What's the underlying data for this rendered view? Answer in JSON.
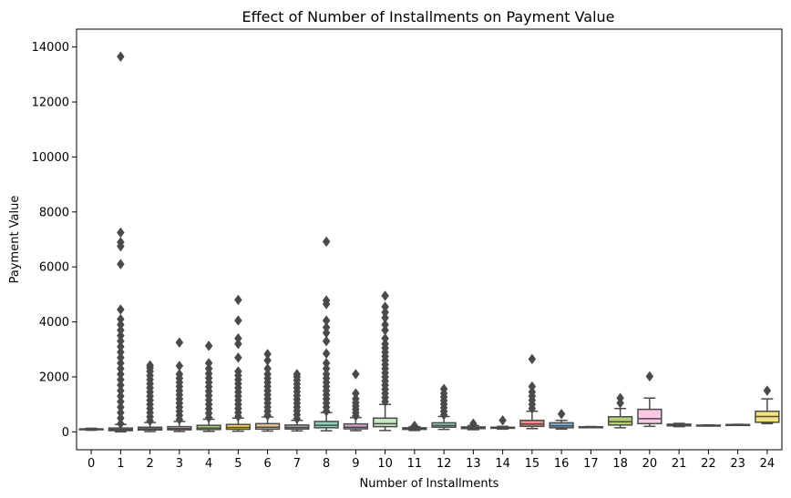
{
  "chart_data": {
    "type": "box",
    "title": "Effect of Number of Installments on Payment Value",
    "xlabel": "Number of Installments",
    "ylabel": "Payment Value",
    "ylim": [
      -650,
      14650
    ],
    "yticks": [
      0,
      2000,
      4000,
      6000,
      8000,
      10000,
      12000,
      14000
    ],
    "grid": false,
    "legend": "none",
    "box_edge_color": "#4a4a4a",
    "categories": [
      "0",
      "1",
      "2",
      "3",
      "4",
      "5",
      "6",
      "7",
      "8",
      "9",
      "10",
      "11",
      "12",
      "13",
      "14",
      "15",
      "16",
      "17",
      "18",
      "20",
      "21",
      "22",
      "23",
      "24"
    ],
    "series": [
      {
        "category": "0",
        "color": "#8fd0bf",
        "min": 60,
        "q1": 80,
        "median": 95,
        "q3": 110,
        "max": 130,
        "outliers": []
      },
      {
        "category": "1",
        "color": "#f4a582",
        "min": 0,
        "q1": 45,
        "median": 85,
        "q3": 140,
        "max": 270,
        "outliers": [
          300,
          500,
          700,
          900,
          1100,
          1300,
          1500,
          1700,
          1900,
          2100,
          2300,
          2500,
          2700,
          2900,
          3100,
          3300,
          3500,
          3700,
          3900,
          4100,
          4450,
          6100,
          6750,
          6900,
          7250,
          13650
        ]
      },
      {
        "category": "2",
        "color": "#9fb3d6",
        "min": 10,
        "q1": 70,
        "median": 110,
        "q3": 170,
        "max": 340,
        "outliers": [
          400,
          550,
          700,
          850,
          1000,
          1150,
          1300,
          1450,
          1600,
          1750,
          1900,
          2050,
          2200,
          2330,
          2420
        ]
      },
      {
        "category": "3",
        "color": "#e3a8d6",
        "min": 15,
        "q1": 75,
        "median": 120,
        "q3": 190,
        "max": 380,
        "outliers": [
          450,
          600,
          750,
          900,
          1050,
          1200,
          1350,
          1500,
          1650,
          1800,
          1950,
          2100,
          2400,
          3250
        ]
      },
      {
        "category": "4",
        "color": "#a6d96a",
        "min": 20,
        "q1": 85,
        "median": 140,
        "q3": 240,
        "max": 460,
        "outliers": [
          520,
          680,
          840,
          1000,
          1160,
          1320,
          1480,
          1640,
          1800,
          1960,
          2120,
          2300,
          2500,
          3130
        ]
      },
      {
        "category": "5",
        "color": "#ffd92f",
        "min": 25,
        "q1": 95,
        "median": 160,
        "q3": 270,
        "max": 500,
        "outliers": [
          560,
          700,
          850,
          1000,
          1150,
          1300,
          1450,
          1600,
          1750,
          1900,
          2050,
          2200,
          2700,
          3200,
          3400,
          4050,
          4800
        ]
      },
      {
        "category": "6",
        "color": "#e5c494",
        "min": 30,
        "q1": 100,
        "median": 170,
        "q3": 300,
        "max": 540,
        "outliers": [
          600,
          750,
          900,
          1050,
          1200,
          1350,
          1500,
          1650,
          1800,
          1950,
          2100,
          2300,
          2600,
          2830
        ]
      },
      {
        "category": "7",
        "color": "#b3b3b3",
        "min": 35,
        "q1": 105,
        "median": 160,
        "q3": 250,
        "max": 420,
        "outliers": [
          480,
          620,
          760,
          900,
          1040,
          1180,
          1320,
          1460,
          1600,
          1740,
          1880,
          2000,
          2100
        ]
      },
      {
        "category": "8",
        "color": "#8fd0bf",
        "min": 40,
        "q1": 150,
        "median": 240,
        "q3": 380,
        "max": 700,
        "outliers": [
          750,
          900,
          1050,
          1200,
          1350,
          1500,
          1650,
          1800,
          1950,
          2100,
          2300,
          2500,
          2850,
          3300,
          3600,
          3800,
          4050,
          4650,
          4780,
          6920
        ]
      },
      {
        "category": "9",
        "color": "#d9a3d1",
        "min": 45,
        "q1": 110,
        "median": 170,
        "q3": 290,
        "max": 520,
        "outliers": [
          580,
          700,
          820,
          940,
          1060,
          1200,
          1400,
          2100
        ]
      },
      {
        "category": "10",
        "color": "#c7e9c0",
        "min": 50,
        "q1": 190,
        "median": 300,
        "q3": 500,
        "max": 1000,
        "outliers": [
          1100,
          1250,
          1400,
          1550,
          1700,
          1850,
          2000,
          2150,
          2300,
          2450,
          2600,
          2750,
          2900,
          3050,
          3200,
          3400,
          3700,
          3900,
          4150,
          4350,
          4550,
          4950
        ]
      },
      {
        "category": "11",
        "color": "#8fd0bf",
        "min": 50,
        "q1": 90,
        "median": 120,
        "q3": 150,
        "max": 190,
        "outliers": [
          220
        ]
      },
      {
        "category": "12",
        "color": "#8fd0bf",
        "min": 90,
        "q1": 170,
        "median": 230,
        "q3": 330,
        "max": 560,
        "outliers": [
          620,
          750,
          880,
          1010,
          1140,
          1270,
          1400,
          1560
        ]
      },
      {
        "category": "13",
        "color": "#9fb3d6",
        "min": 80,
        "q1": 120,
        "median": 150,
        "q3": 180,
        "max": 230,
        "outliers": [
          300
        ]
      },
      {
        "category": "14",
        "color": "#e3a8d6",
        "min": 100,
        "q1": 130,
        "median": 150,
        "q3": 170,
        "max": 200,
        "outliers": [
          420
        ]
      },
      {
        "category": "15",
        "color": "#f08a82",
        "min": 120,
        "q1": 200,
        "median": 280,
        "q3": 420,
        "max": 750,
        "outliers": [
          850,
          1000,
          1150,
          1300,
          1450,
          1650,
          2650
        ]
      },
      {
        "category": "16",
        "color": "#7fb0d6",
        "min": 100,
        "q1": 150,
        "median": 220,
        "q3": 330,
        "max": 420,
        "outliers": [
          650
        ]
      },
      {
        "category": "17",
        "color": "#bdbdbd",
        "min": 160,
        "q1": 175,
        "median": 180,
        "q3": 185,
        "max": 195,
        "outliers": []
      },
      {
        "category": "18",
        "color": "#b5d17a",
        "min": 150,
        "q1": 250,
        "median": 370,
        "q3": 550,
        "max": 850,
        "outliers": [
          1050,
          1230
        ]
      },
      {
        "category": "20",
        "color": "#fcc8e4",
        "min": 200,
        "q1": 300,
        "median": 480,
        "q3": 820,
        "max": 1230,
        "outliers": [
          2020
        ]
      },
      {
        "category": "21",
        "color": "#bdbdbd",
        "min": 190,
        "q1": 220,
        "median": 250,
        "q3": 280,
        "max": 310,
        "outliers": []
      },
      {
        "category": "22",
        "color": "#bdbdbd",
        "min": 215,
        "q1": 225,
        "median": 235,
        "q3": 245,
        "max": 255,
        "outliers": []
      },
      {
        "category": "23",
        "color": "#bdbdbd",
        "min": 245,
        "q1": 253,
        "median": 260,
        "q3": 267,
        "max": 275,
        "outliers": []
      },
      {
        "category": "24",
        "color": "#f5e27a",
        "min": 300,
        "q1": 350,
        "median": 560,
        "q3": 750,
        "max": 1200,
        "outliers": [
          1500
        ]
      }
    ]
  }
}
